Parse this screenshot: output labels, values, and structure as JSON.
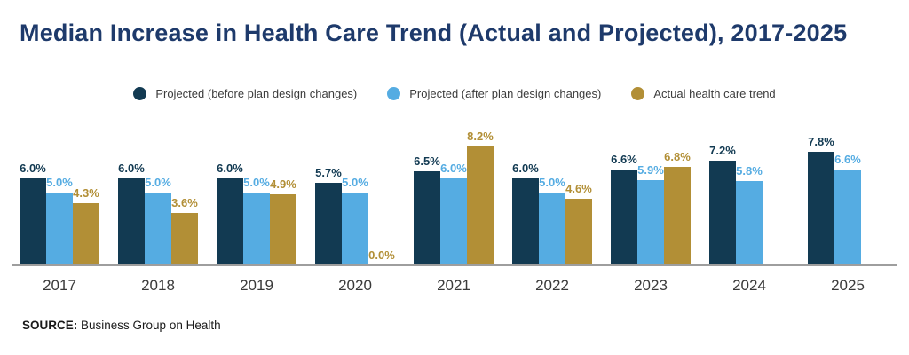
{
  "title": "Median Increase in Health Care Trend (Actual and Projected), 2017-2025",
  "legend": [
    {
      "label": "Projected (before plan design changes)",
      "color": "#123a52"
    },
    {
      "label": "Projected (after plan design changes)",
      "color": "#55ace2"
    },
    {
      "label": "Actual health care trend",
      "color": "#b28f36"
    }
  ],
  "source": {
    "prefix": "SOURCE:",
    "text": " Business Group on Health"
  },
  "colors": {
    "title": "#1e3a6b",
    "axis": "#9e9e9e",
    "year_labels": "#3a3a3a"
  },
  "chart_data": {
    "type": "bar",
    "title": "Median Increase in Health Care Trend (Actual and Projected), 2017-2025",
    "categories": [
      "2017",
      "2018",
      "2019",
      "2020",
      "2021",
      "2022",
      "2023",
      "2024",
      "2025"
    ],
    "series": [
      {
        "key": "projected-before",
        "name": "Projected (before plan design changes)",
        "color": "#123a52",
        "values": [
          6.0,
          6.0,
          6.0,
          5.7,
          6.5,
          6.0,
          6.6,
          7.2,
          7.8
        ]
      },
      {
        "key": "projected-after",
        "name": "Projected (after plan design changes)",
        "color": "#55ace2",
        "values": [
          5.0,
          5.0,
          5.0,
          5.0,
          6.0,
          5.0,
          5.9,
          5.8,
          6.6
        ]
      },
      {
        "key": "actual-trend",
        "name": "Actual health care trend",
        "color": "#b28f36",
        "values": [
          4.3,
          3.6,
          4.9,
          0.0,
          8.2,
          4.6,
          6.8,
          null,
          null
        ]
      }
    ],
    "value_suffix": "%",
    "xlabel": "",
    "ylabel": "",
    "ylim": [
      0,
      9
    ],
    "grid": false,
    "legend_position": "top",
    "data_labels": true
  }
}
